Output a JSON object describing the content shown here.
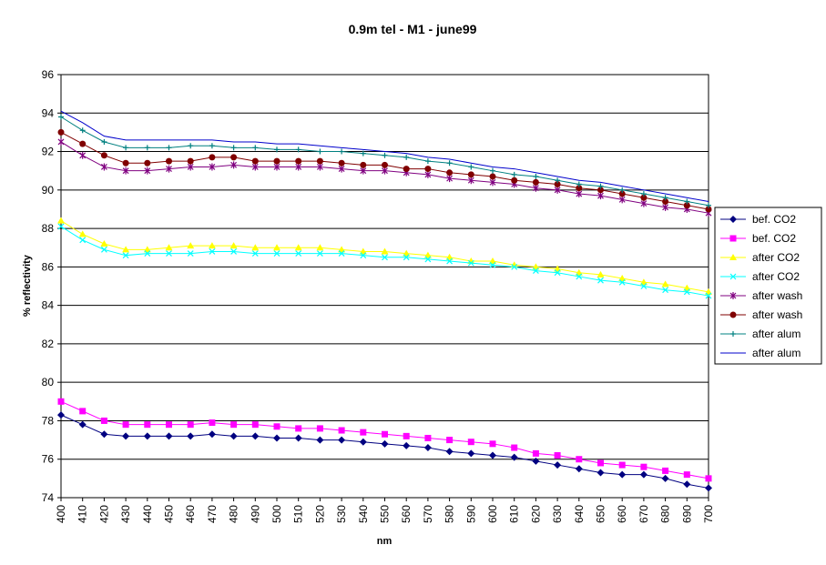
{
  "chart_data": {
    "type": "line",
    "title": "0.9m tel - M1 - june99",
    "xlabel": "nm",
    "ylabel": "% reflectivity",
    "x": [
      400,
      410,
      420,
      430,
      440,
      450,
      460,
      470,
      480,
      490,
      500,
      510,
      520,
      530,
      540,
      550,
      560,
      570,
      580,
      590,
      600,
      610,
      620,
      630,
      640,
      650,
      660,
      670,
      680,
      690,
      700
    ],
    "xlim": [
      400,
      700
    ],
    "ylim": [
      74,
      96
    ],
    "yticks": [
      74,
      76,
      78,
      80,
      82,
      84,
      86,
      88,
      90,
      92,
      94,
      96
    ],
    "grid": "horizontal",
    "legend_position": "right",
    "series": [
      {
        "name": "bef. CO2",
        "color": "#000080",
        "marker": "diamond",
        "values": [
          78.3,
          77.8,
          77.3,
          77.2,
          77.2,
          77.2,
          77.2,
          77.3,
          77.2,
          77.2,
          77.1,
          77.1,
          77.0,
          77.0,
          76.9,
          76.8,
          76.7,
          76.6,
          76.4,
          76.3,
          76.2,
          76.1,
          75.9,
          75.7,
          75.5,
          75.3,
          75.2,
          75.2,
          75.0,
          74.7,
          74.5
        ]
      },
      {
        "name": "bef. CO2",
        "color": "#FF00FF",
        "marker": "square",
        "values": [
          79.0,
          78.5,
          78.0,
          77.8,
          77.8,
          77.8,
          77.8,
          77.9,
          77.8,
          77.8,
          77.7,
          77.6,
          77.6,
          77.5,
          77.4,
          77.3,
          77.2,
          77.1,
          77.0,
          76.9,
          76.8,
          76.6,
          76.3,
          76.2,
          76.0,
          75.8,
          75.7,
          75.6,
          75.4,
          75.2,
          75.0
        ]
      },
      {
        "name": "after CO2",
        "color": "#FFFF00",
        "marker": "triangle",
        "values": [
          88.4,
          87.7,
          87.2,
          86.9,
          86.9,
          87.0,
          87.1,
          87.1,
          87.1,
          87.0,
          87.0,
          87.0,
          87.0,
          86.9,
          86.8,
          86.8,
          86.7,
          86.6,
          86.5,
          86.3,
          86.3,
          86.1,
          86.0,
          85.9,
          85.7,
          85.6,
          85.4,
          85.2,
          85.1,
          84.9,
          84.7
        ]
      },
      {
        "name": "after CO2",
        "color": "#00FFFF",
        "marker": "x",
        "values": [
          88.1,
          87.4,
          86.9,
          86.6,
          86.7,
          86.7,
          86.7,
          86.8,
          86.8,
          86.7,
          86.7,
          86.7,
          86.7,
          86.7,
          86.6,
          86.5,
          86.5,
          86.4,
          86.3,
          86.2,
          86.1,
          86.0,
          85.8,
          85.7,
          85.5,
          85.3,
          85.2,
          85.0,
          84.8,
          84.7,
          84.5
        ]
      },
      {
        "name": "after wash",
        "color": "#800080",
        "marker": "star",
        "values": [
          92.5,
          91.8,
          91.2,
          91.0,
          91.0,
          91.1,
          91.2,
          91.2,
          91.3,
          91.2,
          91.2,
          91.2,
          91.2,
          91.1,
          91.0,
          91.0,
          90.9,
          90.8,
          90.6,
          90.5,
          90.4,
          90.3,
          90.1,
          90.0,
          89.8,
          89.7,
          89.5,
          89.3,
          89.1,
          89.0,
          88.8
        ]
      },
      {
        "name": "after wash",
        "color": "#800000",
        "marker": "circle",
        "values": [
          93.0,
          92.4,
          91.8,
          91.4,
          91.4,
          91.5,
          91.5,
          91.7,
          91.7,
          91.5,
          91.5,
          91.5,
          91.5,
          91.4,
          91.3,
          91.3,
          91.1,
          91.1,
          90.9,
          90.8,
          90.7,
          90.5,
          90.4,
          90.3,
          90.1,
          90.0,
          89.8,
          89.6,
          89.4,
          89.2,
          89.0
        ]
      },
      {
        "name": "after alum",
        "color": "#008080",
        "marker": "plus",
        "values": [
          93.8,
          93.1,
          92.5,
          92.2,
          92.2,
          92.2,
          92.3,
          92.3,
          92.2,
          92.2,
          92.1,
          92.1,
          92.0,
          92.0,
          91.9,
          91.8,
          91.7,
          91.5,
          91.4,
          91.2,
          91.0,
          90.8,
          90.7,
          90.5,
          90.3,
          90.2,
          90.0,
          89.8,
          89.6,
          89.4,
          89.2
        ]
      },
      {
        "name": "after alum",
        "color": "#0000CC",
        "marker": "none",
        "values": [
          94.1,
          93.5,
          92.8,
          92.6,
          92.6,
          92.6,
          92.6,
          92.6,
          92.5,
          92.5,
          92.4,
          92.4,
          92.3,
          92.2,
          92.1,
          92.0,
          91.9,
          91.7,
          91.6,
          91.4,
          91.2,
          91.1,
          90.9,
          90.7,
          90.5,
          90.4,
          90.2,
          90.0,
          89.8,
          89.6,
          89.4
        ]
      }
    ]
  }
}
